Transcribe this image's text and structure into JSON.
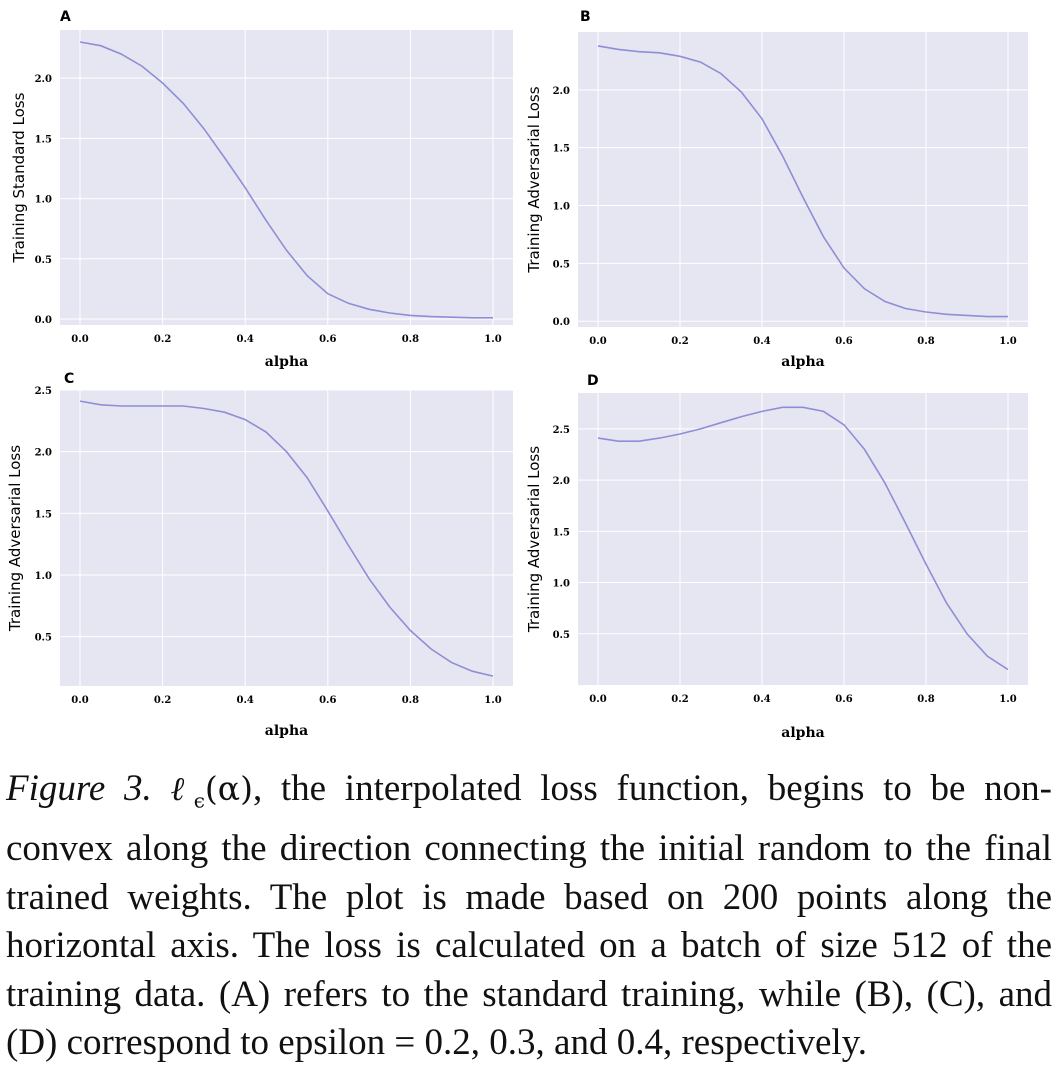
{
  "chart_data": [
    {
      "type": "line",
      "panel": "A",
      "xlabel": "alpha",
      "ylabel": "Training Standard Loss",
      "xlim": [
        0.0,
        1.0
      ],
      "ylim": [
        -0.05,
        2.4
      ],
      "x_ticks": [
        0.0,
        0.2,
        0.4,
        0.6,
        0.8,
        1.0
      ],
      "y_ticks": [
        0.0,
        0.5,
        1.0,
        1.5,
        2.0
      ],
      "grid": true,
      "color": "#8e8ed6",
      "x": [
        0.0,
        0.05,
        0.1,
        0.15,
        0.2,
        0.25,
        0.3,
        0.35,
        0.4,
        0.45,
        0.5,
        0.55,
        0.6,
        0.65,
        0.7,
        0.75,
        0.8,
        0.85,
        0.9,
        0.95,
        1.0
      ],
      "y": [
        2.3,
        2.27,
        2.2,
        2.1,
        1.96,
        1.79,
        1.58,
        1.34,
        1.09,
        0.82,
        0.57,
        0.36,
        0.21,
        0.13,
        0.08,
        0.05,
        0.03,
        0.02,
        0.015,
        0.01,
        0.01
      ]
    },
    {
      "type": "line",
      "panel": "B",
      "xlabel": "alpha",
      "ylabel": "Training Adversarial Loss",
      "xlim": [
        0.0,
        1.0
      ],
      "ylim": [
        -0.05,
        2.5
      ],
      "x_ticks": [
        0.0,
        0.2,
        0.4,
        0.6,
        0.8,
        1.0
      ],
      "y_ticks": [
        0.0,
        0.5,
        1.0,
        1.5,
        2.0
      ],
      "grid": true,
      "color": "#8e8ed6",
      "x": [
        0.0,
        0.05,
        0.1,
        0.15,
        0.2,
        0.25,
        0.3,
        0.35,
        0.4,
        0.45,
        0.5,
        0.55,
        0.6,
        0.65,
        0.7,
        0.75,
        0.8,
        0.85,
        0.9,
        0.95,
        1.0
      ],
      "y": [
        2.38,
        2.35,
        2.33,
        2.32,
        2.29,
        2.24,
        2.14,
        1.98,
        1.75,
        1.43,
        1.07,
        0.73,
        0.46,
        0.28,
        0.17,
        0.11,
        0.08,
        0.06,
        0.05,
        0.04,
        0.04
      ]
    },
    {
      "type": "line",
      "panel": "C",
      "xlabel": "alpha",
      "ylabel": "Training Adversarial Loss",
      "xlim": [
        0.0,
        1.0
      ],
      "ylim": [
        0.1,
        2.5
      ],
      "x_ticks": [
        0.0,
        0.2,
        0.4,
        0.6,
        0.8,
        1.0
      ],
      "y_ticks": [
        0.5,
        1.0,
        1.5,
        2.0,
        2.5
      ],
      "grid": true,
      "color": "#8e8ed6",
      "x": [
        0.0,
        0.05,
        0.1,
        0.15,
        0.2,
        0.25,
        0.3,
        0.35,
        0.4,
        0.45,
        0.5,
        0.55,
        0.6,
        0.65,
        0.7,
        0.75,
        0.8,
        0.85,
        0.9,
        0.95,
        1.0
      ],
      "y": [
        2.41,
        2.38,
        2.37,
        2.37,
        2.37,
        2.37,
        2.35,
        2.32,
        2.26,
        2.16,
        2.0,
        1.79,
        1.52,
        1.24,
        0.97,
        0.74,
        0.55,
        0.4,
        0.29,
        0.22,
        0.18
      ]
    },
    {
      "type": "line",
      "panel": "D",
      "xlabel": "alpha",
      "ylabel": "Training Adversarial Loss",
      "xlim": [
        0.0,
        1.0
      ],
      "ylim": [
        0.0,
        2.85
      ],
      "x_ticks": [
        0.0,
        0.2,
        0.4,
        0.6,
        0.8,
        1.0
      ],
      "y_ticks": [
        0.5,
        1.0,
        1.5,
        2.0,
        2.5
      ],
      "grid": true,
      "color": "#8e8ed6",
      "x": [
        0.0,
        0.05,
        0.1,
        0.15,
        0.2,
        0.25,
        0.3,
        0.35,
        0.4,
        0.45,
        0.5,
        0.55,
        0.6,
        0.65,
        0.7,
        0.75,
        0.8,
        0.85,
        0.9,
        0.95,
        1.0
      ],
      "y": [
        2.41,
        2.38,
        2.38,
        2.41,
        2.45,
        2.5,
        2.56,
        2.62,
        2.67,
        2.71,
        2.71,
        2.67,
        2.54,
        2.3,
        1.97,
        1.58,
        1.18,
        0.8,
        0.5,
        0.28,
        0.15
      ]
    }
  ],
  "caption": {
    "label": "Figure 3.",
    "math_symbol": "ℓ",
    "math_subscript": "ϵ",
    "math_arg": "(α)",
    "text": ", the interpolated loss function, begins to be non-convex along the direction connecting the initial random to the final trained weights. The plot is made based on 200 points along the horizontal axis. The loss is calculated on a batch of size 512 of the training data. (A) refers to the standard training, while (B), (C), and (D) correspond to epsilon = 0.2, 0.3, and 0.4, respectively."
  }
}
